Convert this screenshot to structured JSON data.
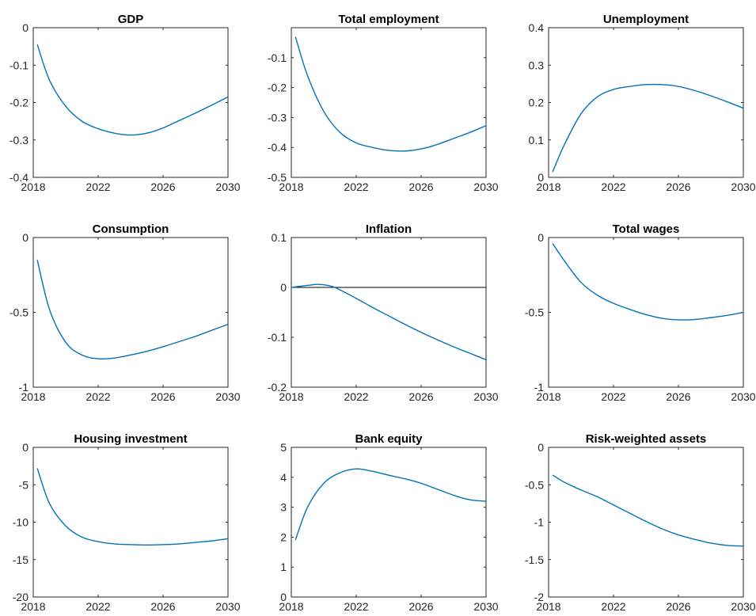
{
  "colors": {
    "series": "#0072BD",
    "axis": "#262626"
  },
  "chart_data": [
    {
      "type": "line",
      "title": "GDP",
      "x": [
        2018.25,
        2019,
        2020,
        2021,
        2022,
        2023,
        2024,
        2025,
        2026,
        2027,
        2028,
        2029,
        2030
      ],
      "series": [
        {
          "values": [
            -0.045,
            -0.14,
            -0.21,
            -0.25,
            -0.27,
            -0.282,
            -0.287,
            -0.282,
            -0.268,
            -0.248,
            -0.228,
            -0.207,
            -0.185
          ]
        }
      ],
      "xlim": [
        2018,
        2030
      ],
      "ylim": [
        -0.4,
        0
      ],
      "xticks": [
        "2018",
        "2022",
        "2026",
        "2030"
      ],
      "yticks": [
        "-0.4",
        "-0.3",
        "-0.2",
        "-0.1",
        "0"
      ]
    },
    {
      "type": "line",
      "title": "Total employment",
      "x": [
        2018.25,
        2019,
        2020,
        2021,
        2022,
        2023,
        2024,
        2025,
        2026,
        2027,
        2028,
        2029,
        2030
      ],
      "series": [
        {
          "values": [
            -0.03,
            -0.16,
            -0.28,
            -0.35,
            -0.385,
            -0.4,
            -0.41,
            -0.412,
            -0.405,
            -0.39,
            -0.37,
            -0.35,
            -0.327
          ]
        }
      ],
      "xlim": [
        2018,
        2030
      ],
      "ylim": [
        -0.5,
        0
      ],
      "xticks": [
        "2018",
        "2022",
        "2026",
        "2030"
      ],
      "yticks": [
        "-0.5",
        "-0.4",
        "-0.3",
        "-0.2",
        "-0.1"
      ]
    },
    {
      "type": "line",
      "title": "Unemployment",
      "x": [
        2018.25,
        2019,
        2020,
        2021,
        2022,
        2023,
        2024,
        2025,
        2026,
        2027,
        2028,
        2029,
        2030
      ],
      "series": [
        {
          "values": [
            0.015,
            0.09,
            0.17,
            0.215,
            0.235,
            0.243,
            0.248,
            0.248,
            0.243,
            0.232,
            0.218,
            0.202,
            0.185
          ]
        }
      ],
      "xlim": [
        2018,
        2030
      ],
      "ylim": [
        0,
        0.4
      ],
      "xticks": [
        "2018",
        "2022",
        "2026",
        "2030"
      ],
      "yticks": [
        "0",
        "0.1",
        "0.2",
        "0.3",
        "0.4"
      ]
    },
    {
      "type": "line",
      "title": "Consumption",
      "x": [
        2018.25,
        2019,
        2020,
        2021,
        2022,
        2023,
        2024,
        2025,
        2026,
        2027,
        2028,
        2029,
        2030
      ],
      "series": [
        {
          "values": [
            -0.15,
            -0.48,
            -0.7,
            -0.785,
            -0.81,
            -0.805,
            -0.785,
            -0.76,
            -0.73,
            -0.695,
            -0.66,
            -0.62,
            -0.58
          ]
        }
      ],
      "xlim": [
        2018,
        2030
      ],
      "ylim": [
        -1,
        0
      ],
      "xticks": [
        "2018",
        "2022",
        "2026",
        "2030"
      ],
      "yticks": [
        "-1",
        "-0.5",
        "0"
      ]
    },
    {
      "type": "line",
      "title": "Inflation",
      "x": [
        2018,
        2019,
        2019.7,
        2020.5,
        2021,
        2022,
        2023,
        2024,
        2025,
        2026,
        2027,
        2028,
        2029,
        2030
      ],
      "series": [
        {
          "values": [
            0,
            0.004,
            0.006,
            0.002,
            -0.005,
            -0.022,
            -0.04,
            -0.057,
            -0.074,
            -0.09,
            -0.105,
            -0.119,
            -0.132,
            -0.145
          ]
        }
      ],
      "reference_line": 0,
      "xlim": [
        2018,
        2030
      ],
      "ylim": [
        -0.2,
        0.1
      ],
      "xticks": [
        "2018",
        "2022",
        "2026",
        "2030"
      ],
      "yticks": [
        "-0.2",
        "-0.1",
        "0",
        "0.1"
      ]
    },
    {
      "type": "line",
      "title": "Total wages",
      "x": [
        2018.25,
        2019,
        2020,
        2021,
        2022,
        2023,
        2024,
        2025,
        2026,
        2027,
        2028,
        2029,
        2030
      ],
      "series": [
        {
          "values": [
            -0.04,
            -0.16,
            -0.3,
            -0.385,
            -0.44,
            -0.48,
            -0.515,
            -0.54,
            -0.55,
            -0.548,
            -0.535,
            -0.52,
            -0.5
          ]
        }
      ],
      "xlim": [
        2018,
        2030
      ],
      "ylim": [
        -1,
        0
      ],
      "xticks": [
        "2018",
        "2022",
        "2026",
        "2030"
      ],
      "yticks": [
        "-1",
        "-0.5",
        "0"
      ]
    },
    {
      "type": "line",
      "title": "Housing investment",
      "x": [
        2018.25,
        2019,
        2020,
        2021,
        2022,
        2023,
        2024,
        2025,
        2026,
        2027,
        2028,
        2029,
        2030
      ],
      "series": [
        {
          "values": [
            -2.8,
            -7.5,
            -10.5,
            -12,
            -12.6,
            -12.9,
            -13,
            -13.05,
            -13,
            -12.9,
            -12.7,
            -12.5,
            -12.2
          ]
        }
      ],
      "xlim": [
        2018,
        2030
      ],
      "ylim": [
        -20,
        0
      ],
      "xticks": [
        "2018",
        "2022",
        "2026",
        "2030"
      ],
      "yticks": [
        "-20",
        "-15",
        "-10",
        "-5",
        "0"
      ]
    },
    {
      "type": "line",
      "title": "Bank equity",
      "x": [
        2018.25,
        2019,
        2020,
        2021,
        2022,
        2023,
        2024,
        2025,
        2026,
        2027,
        2028,
        2029,
        2030
      ],
      "series": [
        {
          "values": [
            1.9,
            3.0,
            3.8,
            4.15,
            4.28,
            4.2,
            4.07,
            3.95,
            3.8,
            3.6,
            3.4,
            3.25,
            3.2
          ]
        }
      ],
      "xlim": [
        2018,
        2030
      ],
      "ylim": [
        0,
        5
      ],
      "xticks": [
        "2018",
        "2022",
        "2026",
        "2030"
      ],
      "yticks": [
        "0",
        "1",
        "2",
        "3",
        "4",
        "5"
      ]
    },
    {
      "type": "line",
      "title": "Risk-weighted assets",
      "x": [
        2018.25,
        2019,
        2020,
        2021,
        2022,
        2023,
        2024,
        2025,
        2026,
        2027,
        2028,
        2029,
        2030
      ],
      "series": [
        {
          "values": [
            -0.37,
            -0.47,
            -0.57,
            -0.66,
            -0.77,
            -0.88,
            -0.99,
            -1.09,
            -1.17,
            -1.23,
            -1.28,
            -1.31,
            -1.32
          ]
        }
      ],
      "xlim": [
        2018,
        2030
      ],
      "ylim": [
        -2,
        0
      ],
      "xticks": [
        "2018",
        "2022",
        "2026",
        "2030"
      ],
      "yticks": [
        "-2",
        "-1.5",
        "-1",
        "-0.5",
        "0"
      ]
    }
  ]
}
